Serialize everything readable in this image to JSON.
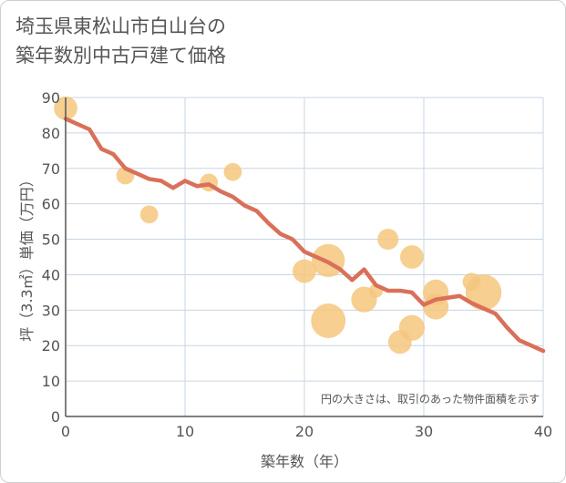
{
  "title_lines": [
    "埼玉県東松山市白山台の",
    "築年数別中古戸建て価格"
  ],
  "chart_data": {
    "type": "scatter",
    "title": "埼玉県東松山市白山台の築年数別中古戸建て価格",
    "xlabel": "築年数（年）",
    "ylabel": "坪（3.3㎡）単価（万円）",
    "xlim": [
      0,
      40
    ],
    "ylim": [
      0,
      90
    ],
    "xticks": [
      0,
      10,
      20,
      30,
      40
    ],
    "yticks": [
      0,
      10,
      20,
      30,
      40,
      50,
      60,
      70,
      80,
      90
    ],
    "grid": true,
    "annotation": "円の大きさは、取引のあった物件面積を示す",
    "colors": {
      "bubble": "#f5c77e",
      "line": "#d9705a",
      "grid": "#c9d5e3",
      "axis": "#555555"
    },
    "scatter_points": [
      {
        "x": 0,
        "y": 87,
        "size": 4
      },
      {
        "x": 5,
        "y": 68,
        "size": 2
      },
      {
        "x": 7,
        "y": 57,
        "size": 2
      },
      {
        "x": 12,
        "y": 66,
        "size": 2
      },
      {
        "x": 14,
        "y": 69,
        "size": 2
      },
      {
        "x": 20,
        "y": 41,
        "size": 4
      },
      {
        "x": 22,
        "y": 44,
        "size": 9
      },
      {
        "x": 22,
        "y": 27,
        "size": 10
      },
      {
        "x": 25,
        "y": 33,
        "size": 5
      },
      {
        "x": 26,
        "y": 35.5,
        "size": 1
      },
      {
        "x": 27,
        "y": 50,
        "size": 3
      },
      {
        "x": 28,
        "y": 21,
        "size": 4
      },
      {
        "x": 29,
        "y": 45,
        "size": 4
      },
      {
        "x": 29,
        "y": 25,
        "size": 5
      },
      {
        "x": 31,
        "y": 35,
        "size": 5
      },
      {
        "x": 31,
        "y": 31,
        "size": 5
      },
      {
        "x": 34,
        "y": 38,
        "size": 2
      },
      {
        "x": 35,
        "y": 35,
        "size": 11
      }
    ],
    "trend_line": {
      "x": [
        0,
        1,
        2,
        3,
        4,
        5,
        6,
        7,
        8,
        9,
        10,
        11,
        12,
        13,
        14,
        15,
        16,
        17,
        18,
        19,
        20,
        21,
        22,
        23,
        24,
        25,
        26,
        27,
        28,
        29,
        30,
        31,
        32,
        33,
        34,
        35,
        36,
        37,
        38,
        39,
        40
      ],
      "y": [
        84,
        82.5,
        81,
        75.5,
        74,
        70,
        68.5,
        67,
        66.5,
        64.5,
        66.5,
        65,
        65.5,
        63.5,
        62,
        59.5,
        58,
        54.5,
        51.5,
        50,
        46.5,
        45,
        43.5,
        41.5,
        38.5,
        41.5,
        37,
        35.5,
        35.5,
        35,
        31.5,
        33,
        33.5,
        34,
        32,
        30.5,
        29,
        25,
        21.5,
        20,
        18.5
      ]
    }
  }
}
